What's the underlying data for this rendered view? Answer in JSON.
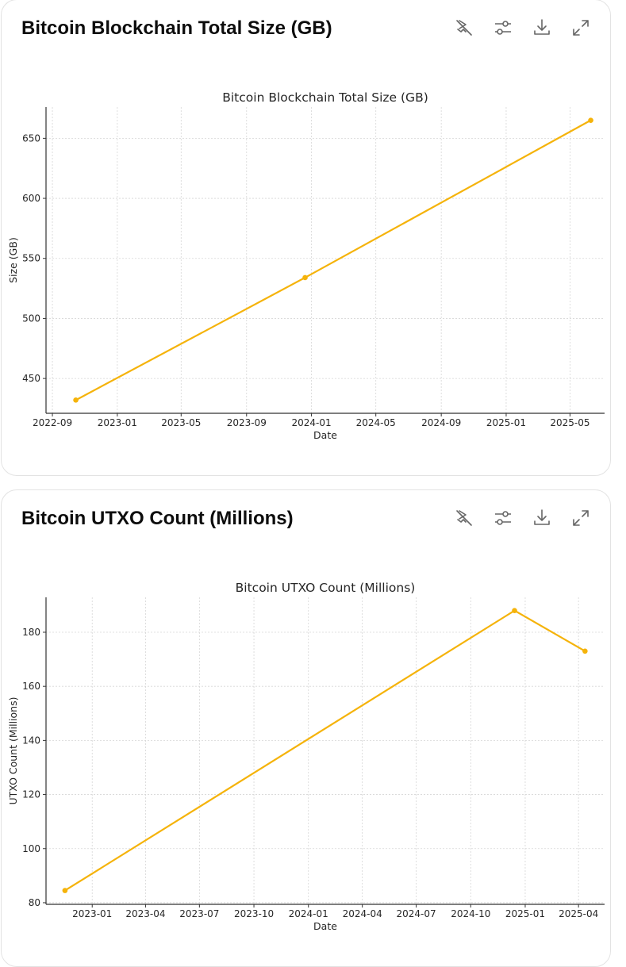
{
  "cards": [
    {
      "header": "Bitcoin Blockchain Total Size (GB)",
      "icons": [
        "hide-chart-icon",
        "settings-sliders-icon",
        "download-icon",
        "expand-icon"
      ]
    },
    {
      "header": "Bitcoin UTXO Count (Millions)",
      "icons": [
        "hide-chart-icon",
        "settings-sliders-icon",
        "download-icon",
        "expand-icon"
      ]
    }
  ],
  "chart_data": [
    {
      "type": "line",
      "title": "Bitcoin Blockchain Total Size (GB)",
      "xlabel": "Date",
      "ylabel": "Size (GB)",
      "x": [
        "2022-10-15",
        "2023-12-20",
        "2025-06-09"
      ],
      "values": [
        432,
        534,
        665
      ],
      "xticks": [
        "2022-09",
        "2023-01",
        "2023-05",
        "2023-09",
        "2024-01",
        "2024-05",
        "2024-09",
        "2025-01",
        "2025-05"
      ],
      "yticks": [
        450,
        500,
        550,
        600,
        650
      ],
      "ylim": [
        421,
        676
      ],
      "xlim": [
        "2022-08-20",
        "2025-07-05"
      ],
      "grid": true,
      "color": "#f5b30a"
    },
    {
      "type": "line",
      "title": "Bitcoin UTXO Count (Millions)",
      "xlabel": "Date",
      "ylabel": "UTXO Count (Millions)",
      "x": [
        "2022-11-16",
        "2024-12-14",
        "2025-04-12"
      ],
      "values": [
        84.5,
        188,
        173
      ],
      "xticks": [
        "2023-01",
        "2023-04",
        "2023-07",
        "2023-10",
        "2024-01",
        "2024-04",
        "2024-07",
        "2024-10",
        "2025-01",
        "2025-04"
      ],
      "yticks": [
        80,
        100,
        120,
        140,
        160,
        180
      ],
      "ylim": [
        79.4,
        192.9
      ],
      "xlim": [
        "2022-10-15",
        "2025-05-15"
      ],
      "grid": true,
      "color": "#f5b30a"
    }
  ]
}
